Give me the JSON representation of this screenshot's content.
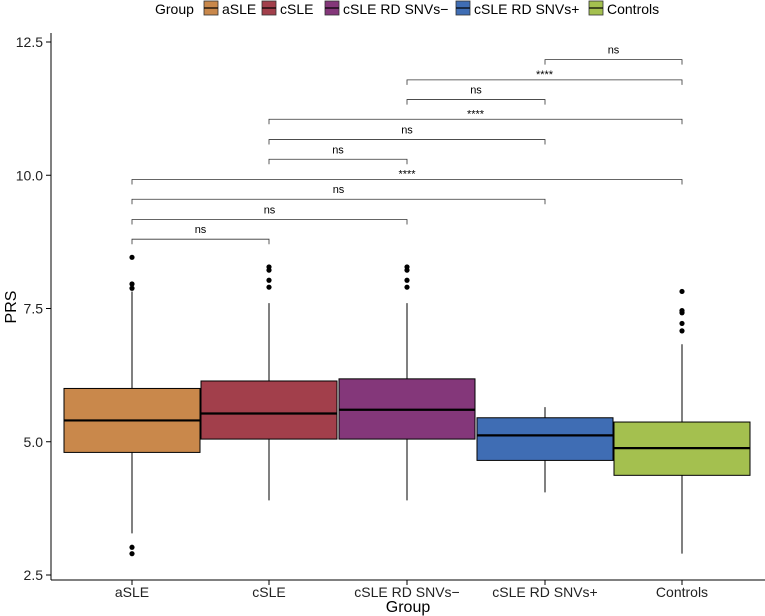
{
  "chart_data": {
    "type": "boxplot",
    "xlabel": "Group",
    "ylabel": "PRS",
    "ylim": [
      2.45,
      12.75
    ],
    "yticks": [
      2.5,
      5.0,
      7.5,
      10.0,
      12.5
    ],
    "ytick_labels": [
      "2.5",
      "5.0",
      "7.5",
      "10.0",
      "12.5"
    ],
    "legend": {
      "title": "Group",
      "position": "top",
      "entries": [
        {
          "label": "aSLE",
          "color": "#C9884B"
        },
        {
          "label": "cSLE",
          "color": "#A23F4B"
        },
        {
          "label": "cSLE RD SNVs−",
          "color": "#84377A"
        },
        {
          "label": "cSLE RD SNVs+",
          "color": "#3F6DB4"
        },
        {
          "label": "Controls",
          "color": "#A4C04F"
        }
      ]
    },
    "categories": [
      "aSLE",
      "cSLE",
      "cSLE RD SNVs−",
      "cSLE RD SNVs+",
      "Controls"
    ],
    "boxes": [
      {
        "group": "aSLE",
        "q1": 4.8,
        "median": 5.4,
        "q3": 6.0,
        "whisker_low": 3.28,
        "whisker_high": 7.82,
        "outliers": [
          2.9,
          3.02,
          7.88,
          7.96,
          8.46
        ]
      },
      {
        "group": "cSLE",
        "q1": 5.05,
        "median": 5.53,
        "q3": 6.14,
        "whisker_low": 3.9,
        "whisker_high": 7.6,
        "outliers": [
          7.9,
          8.03,
          8.22,
          8.28
        ]
      },
      {
        "group": "cSLE RD SNVs−",
        "q1": 5.05,
        "median": 5.6,
        "q3": 6.18,
        "whisker_low": 3.9,
        "whisker_high": 7.6,
        "outliers": [
          7.9,
          8.03,
          8.22,
          8.28
        ]
      },
      {
        "group": "cSLE RD SNVs+",
        "q1": 4.65,
        "median": 5.12,
        "q3": 5.45,
        "whisker_low": 4.05,
        "whisker_high": 5.65,
        "outliers": []
      },
      {
        "group": "Controls",
        "q1": 4.37,
        "median": 4.88,
        "q3": 5.37,
        "whisker_low": 2.9,
        "whisker_high": 6.83,
        "outliers": [
          7.08,
          7.22,
          7.42,
          7.46,
          7.82
        ]
      }
    ],
    "comparisons": [
      {
        "from": 0,
        "to": 1,
        "y": 8.8,
        "label": "ns"
      },
      {
        "from": 0,
        "to": 2,
        "y": 9.17,
        "label": "ns"
      },
      {
        "from": 0,
        "to": 3,
        "y": 9.55,
        "label": "ns"
      },
      {
        "from": 0,
        "to": 4,
        "y": 9.92,
        "label": "****"
      },
      {
        "from": 1,
        "to": 2,
        "y": 10.3,
        "label": "ns"
      },
      {
        "from": 1,
        "to": 3,
        "y": 10.67,
        "label": "ns"
      },
      {
        "from": 1,
        "to": 4,
        "y": 11.05,
        "label": "****"
      },
      {
        "from": 2,
        "to": 3,
        "y": 11.42,
        "label": "ns"
      },
      {
        "from": 2,
        "to": 4,
        "y": 11.79,
        "label": "****"
      },
      {
        "from": 3,
        "to": 4,
        "y": 12.17,
        "label": "ns"
      }
    ]
  }
}
